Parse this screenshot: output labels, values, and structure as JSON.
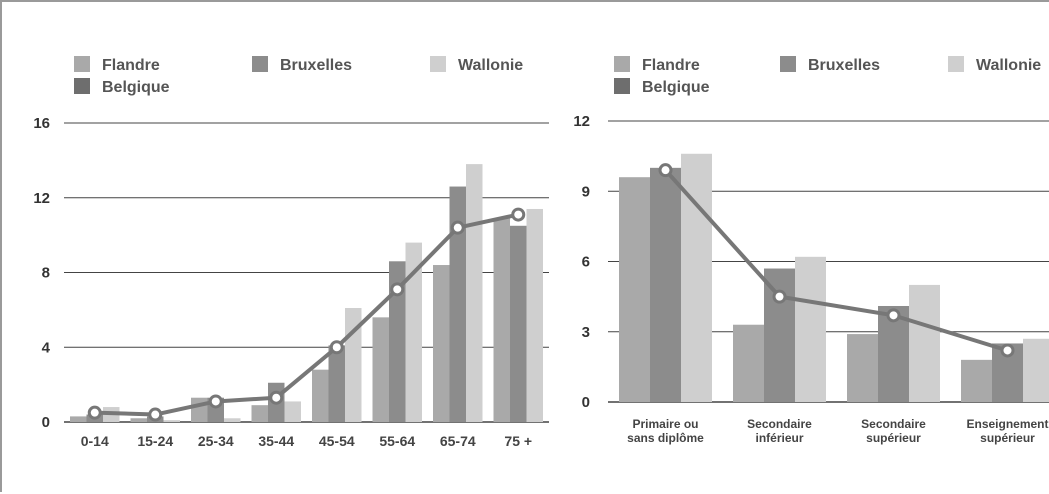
{
  "colors": {
    "Flandre": "#a9a9a9",
    "Bruxelles": "#8c8c8c",
    "Wallonie": "#cfcfcf",
    "Belgique": "#6e6e6e",
    "line": "#777777",
    "grid": "#444444"
  },
  "chart_data": [
    {
      "type": "bar",
      "legend": [
        "Flandre",
        "Bruxelles",
        "Wallonie",
        "Belgique"
      ],
      "categories": [
        "0-14",
        "15-24",
        "25-34",
        "35-44",
        "45-54",
        "55-64",
        "65-74",
        "75 +"
      ],
      "yticks": [
        0,
        4,
        8,
        12,
        16
      ],
      "ylim": [
        0,
        16
      ],
      "grid": true,
      "series": [
        {
          "name": "Flandre",
          "kind": "bar",
          "values": [
            0.3,
            0.2,
            1.3,
            0.9,
            2.8,
            5.6,
            8.4,
            10.9
          ]
        },
        {
          "name": "Bruxelles",
          "kind": "bar",
          "values": [
            0.4,
            0.3,
            1.3,
            2.1,
            4.1,
            8.6,
            12.6,
            10.5
          ]
        },
        {
          "name": "Wallonie",
          "kind": "bar",
          "values": [
            0.8,
            0.1,
            0.2,
            1.1,
            6.1,
            9.6,
            13.8,
            11.4
          ]
        },
        {
          "name": "Belgique",
          "kind": "line",
          "values": [
            0.5,
            0.4,
            1.1,
            1.3,
            4.0,
            7.1,
            10.4,
            11.1
          ]
        }
      ]
    },
    {
      "type": "bar",
      "legend": [
        "Flandre",
        "Bruxelles",
        "Wallonie",
        "Belgique"
      ],
      "categories": [
        [
          "Primaire ou",
          "sans diplôme"
        ],
        [
          "Secondaire",
          "inférieur"
        ],
        [
          "Secondaire",
          "supérieur"
        ],
        [
          "Enseignement",
          "supérieur"
        ]
      ],
      "yticks": [
        0,
        3,
        6,
        9,
        12
      ],
      "ylim": [
        0,
        12
      ],
      "grid": true,
      "series": [
        {
          "name": "Flandre",
          "kind": "bar",
          "values": [
            9.6,
            3.3,
            2.9,
            1.8
          ]
        },
        {
          "name": "Bruxelles",
          "kind": "bar",
          "values": [
            10.0,
            5.7,
            4.1,
            2.5
          ]
        },
        {
          "name": "Wallonie",
          "kind": "bar",
          "values": [
            10.6,
            6.2,
            5.0,
            2.7
          ]
        },
        {
          "name": "Belgique",
          "kind": "line",
          "values": [
            9.9,
            4.5,
            3.7,
            2.2
          ]
        }
      ]
    }
  ]
}
